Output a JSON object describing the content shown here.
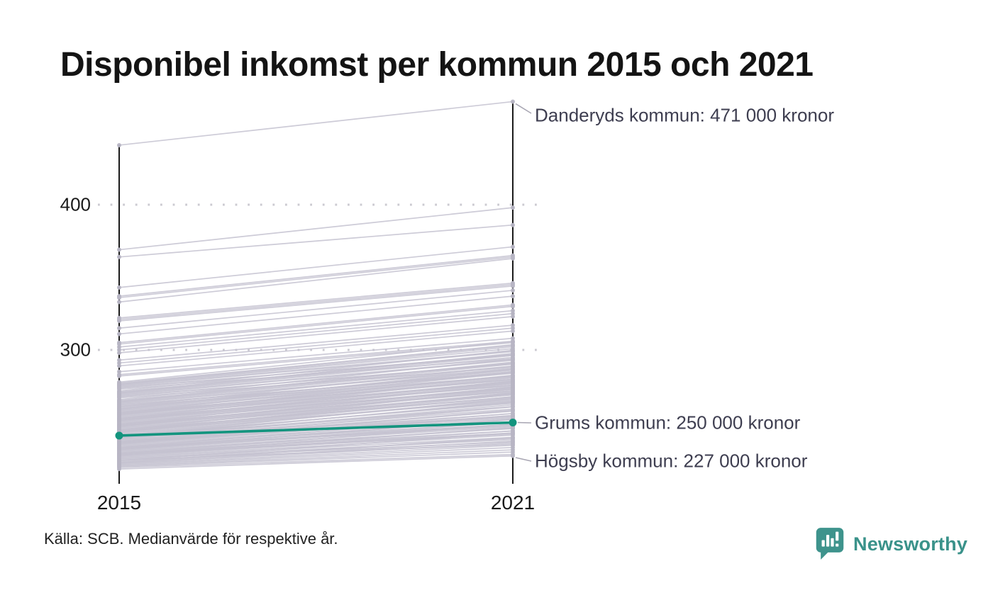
{
  "page": {
    "title": "Disponibel inkomst per kommun 2015 och 2021",
    "source_note": "Källa: SCB. Medianvärde för respektive år."
  },
  "logo": {
    "text": "Newsworthy",
    "icon": "speech-bubble-with-bar-chart-and-exclamation"
  },
  "colors": {
    "bundle_line": "#c4c2d0",
    "endpoint_dot": "#b7b5c4",
    "highlight_teal": "#13947e",
    "axis_black": "#1a1a1a",
    "grid_dot": "#cbcad1",
    "annotation_text": "#3e3e50",
    "leader_line": "#a7a5b2",
    "logo_teal": "#3e938c"
  },
  "chart_data": {
    "type": "line",
    "subtype": "slopegraph",
    "title": "Disponibel inkomst per kommun 2015 och 2021",
    "x": [
      2015,
      2021
    ],
    "x_labels": [
      "2015",
      "2021"
    ],
    "y_ticks": [
      400,
      300
    ],
    "y_tick_labels": [
      "400",
      "300"
    ],
    "ylim": [
      210,
      478
    ],
    "grid": "dotted horizontal gridlines at y ticks",
    "values_unit": "thousands of kronor",
    "legend_position": "none (direct annotations at right)",
    "annotations": [
      {
        "text": "Danderyds kommun: 471 000 kronor",
        "value_2021": 471
      },
      {
        "text": "Grums kommun: 250 000 kronor",
        "value_2021": 250
      },
      {
        "text": "Högsby kommun: 227 000 kronor",
        "value_2021": 227
      }
    ],
    "highlighted_series": {
      "name": "Grums kommun",
      "values": [
        241,
        250
      ]
    },
    "named_series": [
      {
        "name": "Danderyds kommun",
        "values": [
          441,
          471
        ]
      },
      {
        "name": "Grums kommun",
        "values": [
          241,
          250
        ]
      },
      {
        "name": "Högsby kommun",
        "values": [
          218,
          227
        ]
      }
    ],
    "unlabeled_series_pairs": [
      [
        369,
        398
      ],
      [
        364,
        386
      ],
      [
        343,
        371
      ],
      [
        337,
        365
      ],
      [
        336,
        364
      ],
      [
        333,
        363
      ],
      [
        322,
        346
      ],
      [
        321,
        345
      ],
      [
        320,
        344
      ],
      [
        315,
        341
      ],
      [
        311,
        337
      ],
      [
        305,
        331
      ],
      [
        304,
        330
      ],
      [
        302,
        327
      ],
      [
        300,
        325
      ],
      [
        298,
        323
      ],
      [
        293,
        317
      ],
      [
        291,
        315
      ],
      [
        289,
        313
      ],
      [
        285,
        308
      ],
      [
        283,
        306
      ],
      [
        282,
        305
      ]
    ],
    "bundle_offsets": [
      0,
      2.3,
      4.1,
      1.2,
      3.6,
      0.7,
      2.9,
      4.8,
      1.8,
      3.2
    ],
    "bundle_groups": [
      {
        "base": 219,
        "deltas": [
          9,
          13,
          16,
          11,
          17,
          10,
          14,
          19,
          12,
          15
        ]
      },
      {
        "base": 224,
        "deltas": [
          11,
          15,
          18,
          13,
          19,
          12,
          16,
          20,
          14,
          17
        ]
      },
      {
        "base": 228,
        "deltas": [
          14,
          17,
          20,
          15,
          21,
          14,
          18,
          22,
          16,
          19
        ]
      },
      {
        "base": 232,
        "deltas": [
          16,
          19,
          22,
          17,
          23,
          16,
          20,
          24,
          18,
          21
        ]
      },
      {
        "base": 236,
        "deltas": [
          18,
          21,
          24,
          19,
          25,
          18,
          22,
          26,
          20,
          23
        ]
      },
      {
        "base": 240,
        "deltas": [
          21,
          24,
          26,
          22,
          27,
          23,
          25,
          28,
          24,
          26
        ]
      },
      {
        "base": 244,
        "deltas": [
          21,
          24,
          26,
          22,
          27,
          23,
          25,
          28,
          24,
          26
        ]
      },
      {
        "base": 248,
        "deltas": [
          21,
          24,
          26,
          22,
          27,
          23,
          25,
          28,
          24,
          26
        ]
      },
      {
        "base": 252,
        "deltas": [
          21,
          24,
          26,
          22,
          27,
          23,
          25,
          28,
          24,
          26
        ]
      },
      {
        "base": 256,
        "deltas": [
          21,
          24,
          26,
          22,
          27,
          23,
          25,
          28,
          24,
          26
        ]
      },
      {
        "base": 261,
        "deltas": [
          21,
          24,
          26,
          22,
          27,
          23,
          25,
          28,
          24,
          26
        ]
      },
      {
        "base": 267,
        "deltas": [
          21,
          24,
          26,
          22,
          27,
          23,
          25,
          28,
          24,
          26
        ]
      },
      {
        "base": 273,
        "deltas": [
          21,
          24,
          26,
          22,
          27,
          23,
          25,
          28,
          24,
          26
        ]
      }
    ]
  }
}
